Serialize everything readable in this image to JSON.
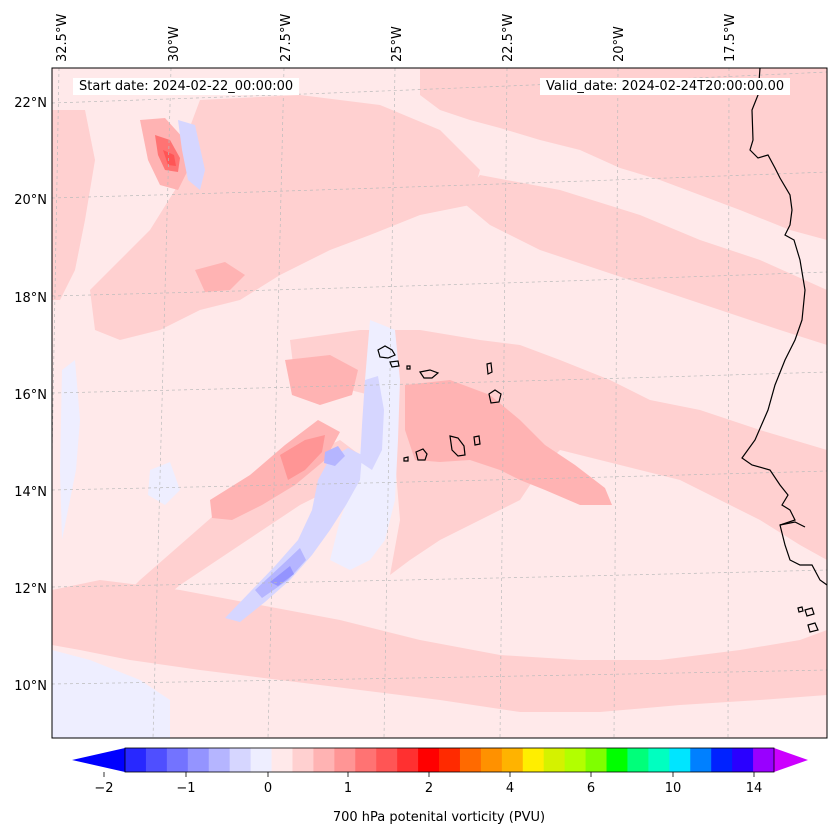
{
  "header": {
    "start_date": "Start date: 2024-02-22_00:00:00",
    "valid_date": "Valid_date: 2024-02-24T20:00:00.00"
  },
  "map": {
    "projection": "lambert-conformal",
    "extent": {
      "lon_min": -33,
      "lon_max": -15,
      "lat_min": 9,
      "lat_max": 22.8
    },
    "lon_labels": [
      "32.5°W",
      "30°W",
      "27.5°W",
      "25°W",
      "22.5°W",
      "20°W",
      "17.5°W"
    ],
    "lat_labels": [
      "22°N",
      "20°N",
      "18°N",
      "16°N",
      "14°N",
      "12°N",
      "10°N"
    ],
    "gridlines": true,
    "coastline_color": "#000000",
    "background_fill": "#ffe9ea"
  },
  "colorbar": {
    "label": "700 hPa potenital vorticity (PVU)",
    "tick_labels": [
      "−2",
      "−1",
      "0",
      "1",
      "2",
      "4",
      "6",
      "10",
      "14"
    ],
    "colors": [
      "#0000ff",
      "#2828ff",
      "#4f4fff",
      "#7373ff",
      "#9494ff",
      "#b5b5ff",
      "#d6d6ff",
      "#eeeeff",
      "#ffe9ea",
      "#ffd0d0",
      "#ffb3b3",
      "#ff9595",
      "#ff7373",
      "#ff5555",
      "#ff3030",
      "#ff0000",
      "#ff2a00",
      "#ff6a00",
      "#ff9100",
      "#ffb300",
      "#ffee00",
      "#d4f200",
      "#b2ff00",
      "#7fff00",
      "#00ff00",
      "#00ff7a",
      "#00ffc0",
      "#00e5ff",
      "#0080ff",
      "#0022ff",
      "#2a00ff",
      "#9900ff",
      "#cc00ff"
    ],
    "extend": "both"
  }
}
